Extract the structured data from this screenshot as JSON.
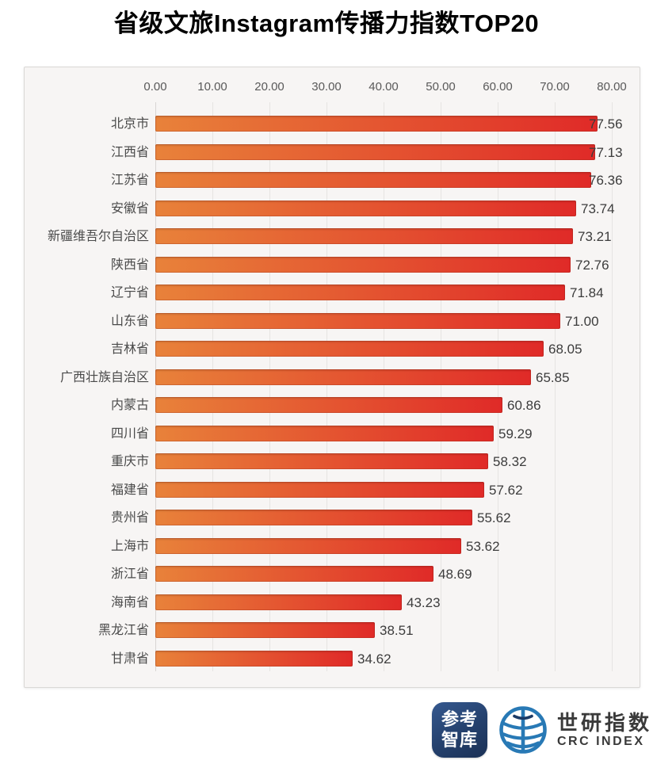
{
  "title": "省级文旅Instagram传播力指数TOP20",
  "chart_data": {
    "type": "bar",
    "orientation": "horizontal",
    "title": "省级文旅Instagram传播力指数TOP20",
    "categories": [
      "北京市",
      "江西省",
      "江苏省",
      "安徽省",
      "新疆维吾尔自治区",
      "陕西省",
      "辽宁省",
      "山东省",
      "吉林省",
      "广西壮族自治区",
      "内蒙古",
      "四川省",
      "重庆市",
      "福建省",
      "贵州省",
      "上海市",
      "浙江省",
      "海南省",
      "黑龙江省",
      "甘肃省"
    ],
    "values": [
      77.56,
      77.13,
      76.36,
      73.74,
      73.21,
      72.76,
      71.84,
      71.0,
      68.05,
      65.85,
      60.86,
      59.29,
      58.32,
      57.62,
      55.62,
      53.62,
      48.69,
      43.23,
      38.51,
      34.62
    ],
    "xlabel": "",
    "ylabel": "",
    "xlim": [
      0,
      80
    ],
    "x_ticks": [
      "0.00",
      "10.00",
      "20.00",
      "30.00",
      "40.00",
      "50.00",
      "60.00",
      "70.00",
      "80.00"
    ],
    "grid": true,
    "value_labels_shown": true,
    "value_label_decimals": 2,
    "bar_color_start": "#e8823a",
    "bar_color_end": "#e02a28",
    "panel_background": "#f7f5f4",
    "gridline_color": "#e6e4e2",
    "tick_label_color": "#595959",
    "category_label_color": "#4a4a4a",
    "value_label_color": "#3c3c3c"
  },
  "footer": {
    "logo1_line1": "参考",
    "logo1_line2": "智库",
    "logo1_color": "#24406c",
    "logo2_cn": "世研指数",
    "logo2_en": "CRC INDEX",
    "logo2_globe_color": "#2879b5",
    "logo2_text_color": "#3a3a3a"
  }
}
